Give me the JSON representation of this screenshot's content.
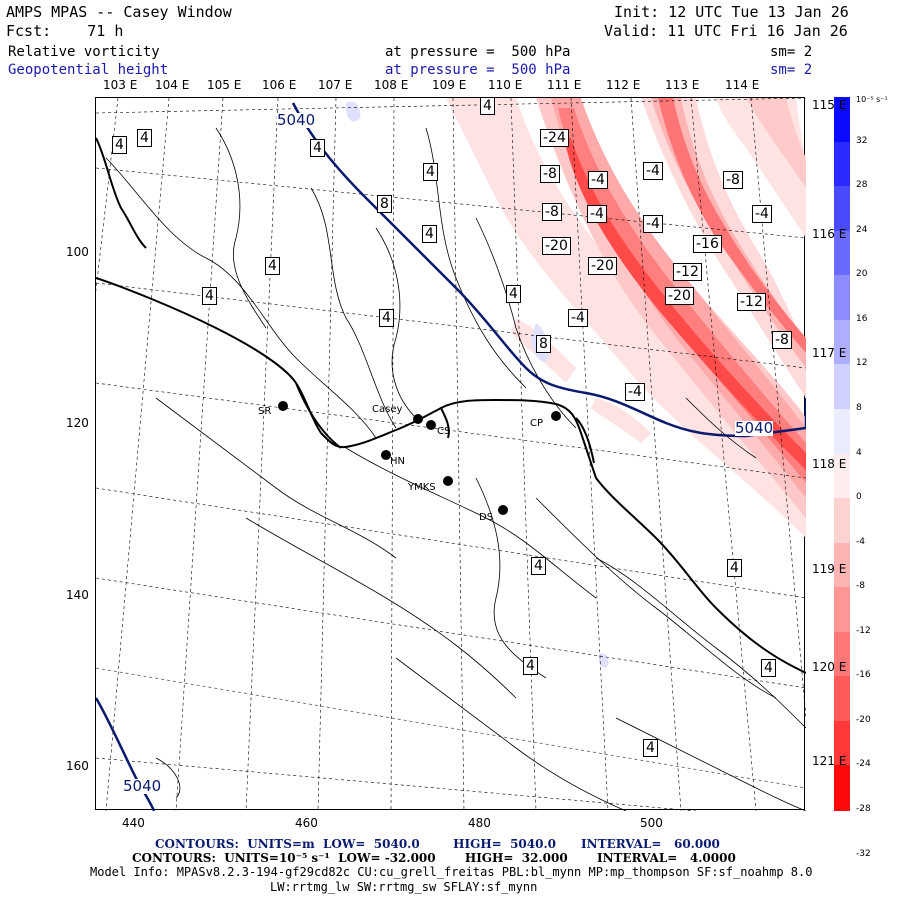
{
  "header": {
    "title": "AMPS MPAS -- Casey Window",
    "fcst": "Fcst:    71 h",
    "init": "Init: 12 UTC Tue 13 Jan 26",
    "valid": "Valid: 11 UTC Fri 16 Jan 26",
    "field1_name": "Relative vorticity",
    "field1_level": "at pressure =  500 hPa",
    "field1_sm": "sm= 2",
    "field2_name": "Geopotential height",
    "field2_level": "at pressure =  500 hPa",
    "field2_sm": "sm= 2"
  },
  "longitude_labels": [
    "103 E",
    "104 E",
    "105 E",
    "106 E",
    "107 E",
    "108 E",
    "109 E",
    "110 E",
    "111 E",
    "112 E",
    "113 E",
    "114 E"
  ],
  "latitude_labels": [
    "115 E",
    "116 E",
    "117 E",
    "118 E",
    "119 E",
    "120 E",
    "121 E"
  ],
  "x_ticks": [
    "440",
    "460",
    "480",
    "500"
  ],
  "y_ticks": [
    "100",
    "120",
    "140",
    "160"
  ],
  "colorbar": {
    "unit": "10⁻⁵ s⁻¹",
    "labels": [
      "32",
      "28",
      "24",
      "20",
      "16",
      "12",
      "8",
      "4",
      "0",
      "-4",
      "-8",
      "-12",
      "-16",
      "-20",
      "-24",
      "-28",
      "-32"
    ],
    "colors_positive": [
      "#0a0aff",
      "#2a2aff",
      "#4a4aff",
      "#6a6aff",
      "#8c8cff",
      "#aeaeff",
      "#d0d0ff",
      "#ececff"
    ],
    "colors_negative": [
      "#ffecec",
      "#ffd2d2",
      "#ffb4b4",
      "#ff9696",
      "#ff7878",
      "#ff5a5a",
      "#ff3838",
      "#ff0a0a"
    ]
  },
  "stations": [
    {
      "name": "SR"
    },
    {
      "name": "Casey"
    },
    {
      "name": "CS"
    },
    {
      "name": "HN"
    },
    {
      "name": "YMKS"
    },
    {
      "name": "CP"
    },
    {
      "name": "DS"
    }
  ],
  "height_contour_labels": [
    "5040",
    "5040",
    "5040"
  ],
  "vorticity_labels": [
    "4",
    "4",
    "4",
    "8",
    "4",
    "4",
    "4",
    "4",
    "4",
    "8",
    "4",
    "4",
    "4",
    "4",
    "4",
    "4",
    "4",
    "-24",
    "-8",
    "-4",
    "-8",
    "-4",
    "-20",
    "-4",
    "-20",
    "-4",
    "-20",
    "-16",
    "-12",
    "-12",
    "-8",
    "-8",
    "-4",
    "-4",
    "-4"
  ],
  "footer": {
    "contours1": "CONTOURS:  UNITS=m  LOW=  5040.0        HIGH=  5040.0      INTERVAL=   60.000",
    "contours2": "CONTOURS:  UNITS=10⁻⁵ s⁻¹  LOW= -32.000       HIGH=  32.000       INTERVAL=   4.0000",
    "model_info": "Model Info: MPASv8.2.3-194-gf29cd82c CU:cu_grell_freitas PBL:bl_mynn MP:mp_thompson SF:sf_noahmp 8.0",
    "model_info2": "LW:rrtmg_lw SW:rrtmg_sw SFLAY:sf_mynn"
  }
}
